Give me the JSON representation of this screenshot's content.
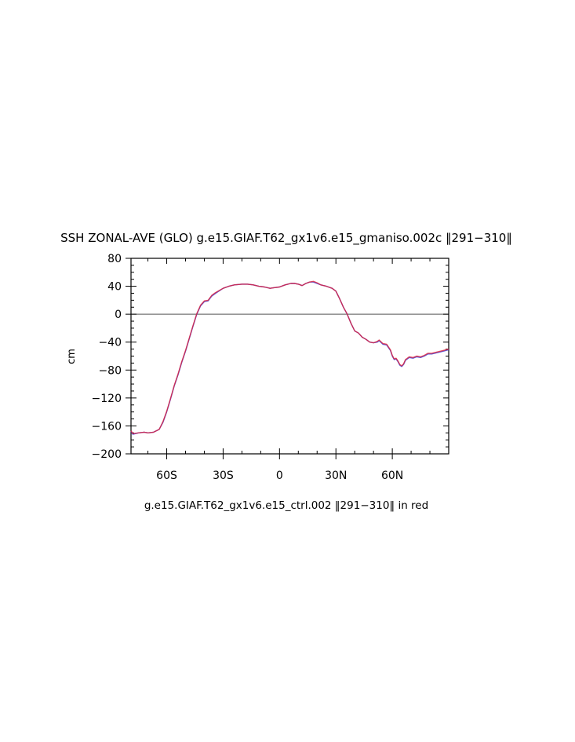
{
  "chart_data": {
    "type": "line",
    "title": "SSH ZONAL-AVE (GLO) g.e15.GIAF.T62_gx1v6.e15_gmaniso.002c ‖291−310‖",
    "subtitle": "g.e15.GIAF.T62_gx1v6.e15_ctrl.002 ‖291−310‖ in red",
    "xlabel": "",
    "ylabel": "cm",
    "xlim": [
      -79,
      90
    ],
    "ylim": [
      -200,
      80
    ],
    "grid": false,
    "x_ticks": [
      {
        "value": -60,
        "label": "60S"
      },
      {
        "value": -30,
        "label": "30S"
      },
      {
        "value": 0,
        "label": "0"
      },
      {
        "value": 30,
        "label": "30N"
      },
      {
        "value": 60,
        "label": "60N"
      }
    ],
    "y_ticks": [
      {
        "value": 80,
        "label": "80"
      },
      {
        "value": 40,
        "label": "40"
      },
      {
        "value": 0,
        "label": "0"
      },
      {
        "value": -40,
        "label": "−40"
      },
      {
        "value": -80,
        "label": "−80"
      },
      {
        "value": -120,
        "label": "−120"
      },
      {
        "value": -160,
        "label": "−160"
      },
      {
        "value": -200,
        "label": "−200"
      }
    ],
    "reference_line": {
      "y": 0,
      "color": "#555555"
    },
    "series": [
      {
        "color": "#3a3ad0",
        "x": [
          -79,
          -78,
          -75,
          -72,
          -70,
          -67,
          -64,
          -62,
          -60,
          -58,
          -56,
          -54,
          -52,
          -50,
          -48,
          -46,
          -44,
          -42,
          -40,
          -38,
          -36,
          -34,
          -30,
          -27,
          -24,
          -20,
          -17,
          -14,
          -11,
          -8,
          -5,
          -3,
          0,
          3,
          6,
          8,
          10,
          12,
          14,
          16,
          18,
          20,
          22,
          25,
          28,
          30,
          32,
          34,
          36,
          38,
          40,
          42,
          44,
          46,
          48,
          50,
          52,
          53,
          55,
          57,
          59,
          60,
          61,
          62,
          63,
          64,
          65,
          66,
          67,
          69,
          71,
          73,
          75,
          77,
          79,
          81,
          84,
          87,
          90
        ],
        "y": [
          -168,
          -172,
          -170,
          -169,
          -170,
          -169,
          -165,
          -155,
          -140,
          -122,
          -103,
          -87,
          -69,
          -53,
          -35,
          -17,
          0,
          12,
          18,
          19,
          26,
          30,
          37,
          40,
          42,
          43,
          43,
          42,
          40,
          39,
          37,
          38,
          39,
          42,
          44,
          44,
          43,
          41,
          44,
          46,
          46,
          44,
          42,
          40,
          37,
          33,
          22,
          10,
          0,
          -13,
          -24,
          -27,
          -33,
          -36,
          -40,
          -41,
          -40,
          -38,
          -43,
          -44,
          -52,
          -60,
          -65,
          -64,
          -68,
          -73,
          -75,
          -72,
          -66,
          -62,
          -63,
          -61,
          -62,
          -60,
          -57,
          -57,
          -55,
          -53,
          -51
        ]
      },
      {
        "color": "#e0203a",
        "x": [
          -79,
          -78,
          -75,
          -72,
          -70,
          -67,
          -64,
          -62,
          -60,
          -58,
          -56,
          -54,
          -52,
          -50,
          -48,
          -46,
          -44,
          -42,
          -40,
          -38,
          -36,
          -34,
          -30,
          -27,
          -24,
          -20,
          -17,
          -14,
          -11,
          -8,
          -5,
          -3,
          0,
          3,
          6,
          8,
          10,
          12,
          14,
          16,
          18,
          20,
          22,
          25,
          28,
          30,
          32,
          34,
          36,
          38,
          40,
          42,
          44,
          46,
          48,
          50,
          52,
          53,
          55,
          57,
          59,
          60,
          61,
          62,
          63,
          64,
          65,
          66,
          67,
          69,
          71,
          73,
          75,
          77,
          79,
          81,
          84,
          87,
          90
        ],
        "y": [
          -167,
          -171,
          -170,
          -169,
          -170,
          -169,
          -165,
          -154,
          -139,
          -121,
          -102,
          -86,
          -68,
          -52,
          -34,
          -16,
          1,
          13,
          19,
          20,
          27,
          31,
          37,
          40,
          42,
          43,
          43,
          42,
          40,
          39,
          37,
          38,
          39,
          42,
          44,
          44,
          43,
          41,
          44,
          46,
          47,
          45,
          42,
          40,
          37,
          33,
          22,
          10,
          0,
          -13,
          -24,
          -27,
          -33,
          -36,
          -40,
          -41,
          -39,
          -37,
          -42,
          -43,
          -51,
          -59,
          -64,
          -63,
          -67,
          -72,
          -74,
          -71,
          -65,
          -61,
          -62,
          -60,
          -61,
          -59,
          -56,
          -56,
          -54,
          -52,
          -50
        ]
      }
    ]
  }
}
